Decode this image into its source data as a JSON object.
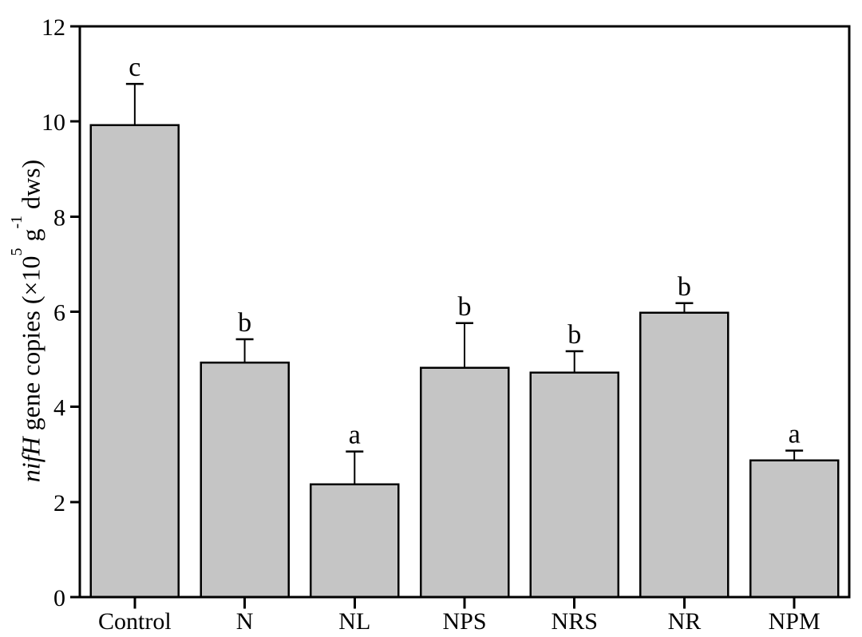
{
  "chart_data": {
    "type": "bar",
    "title": "",
    "xlabel": "",
    "ylabel": "nifH gene copies (×10^5 g^-1 dws)",
    "ylabel_parts": {
      "italic": "nifH",
      "text1": " gene copies (×10",
      "sup1": "5",
      "text2": " g",
      "sup2": "-1",
      "text3": " dws)"
    },
    "categories": [
      "Control",
      "N",
      "NL",
      "NPS",
      "NRS",
      "NR",
      "NPM"
    ],
    "values": [
      9.92,
      4.93,
      2.37,
      4.82,
      4.72,
      5.98,
      2.87
    ],
    "errors_upper": [
      0.87,
      0.49,
      0.69,
      0.94,
      0.45,
      0.2,
      0.21
    ],
    "sig_letters": [
      "c",
      "b",
      "a",
      "b",
      "b",
      "b",
      "a"
    ],
    "ylim": [
      0,
      12
    ],
    "yticks": [
      0,
      2,
      4,
      6,
      8,
      10,
      12
    ],
    "grid": false,
    "legend_position": "none",
    "box_frame": true,
    "error_bar_direction": "upper",
    "colors": {
      "bar_fill": "#c5c5c5",
      "bar_edge": "#000000",
      "axis": "#000000",
      "text": "#000000",
      "background": "#ffffff"
    }
  }
}
